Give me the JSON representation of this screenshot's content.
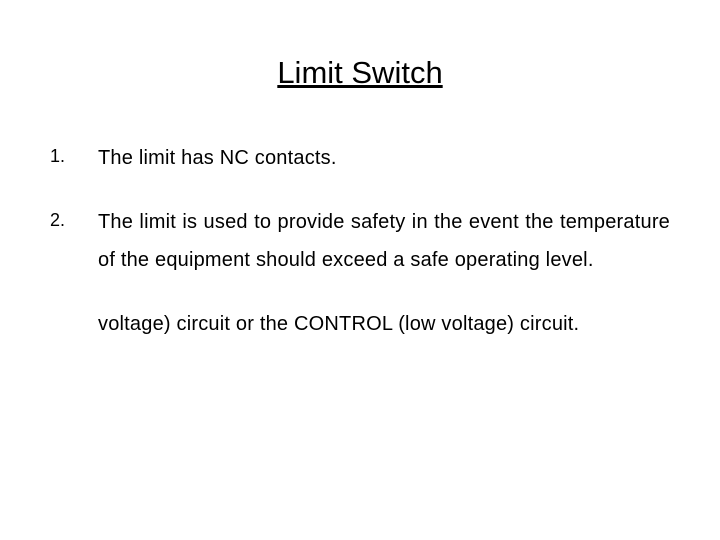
{
  "slide": {
    "title": "Limit Switch",
    "background_color": "#ffffff",
    "text_color": "#000000",
    "title_fontsize": 31,
    "body_fontsize": 20,
    "number_fontsize": 18,
    "items": [
      {
        "number": "1.",
        "text": "The limit has NC contacts."
      },
      {
        "number": "2.",
        "text": "The limit is used to provide safety in the event the temperature of the equipment should exceed a safe operating level."
      }
    ],
    "orphan_text": "voltage) circuit or the CONTROL (low voltage) circuit."
  }
}
